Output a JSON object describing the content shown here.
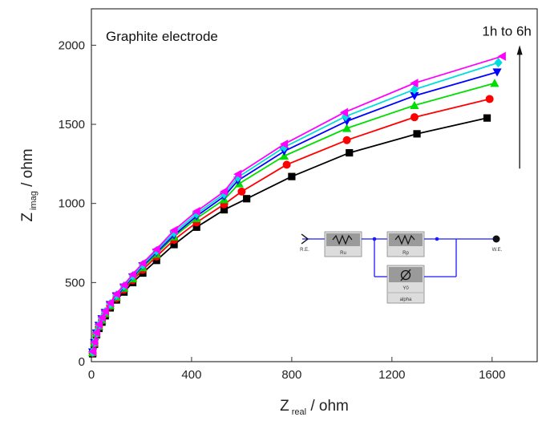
{
  "chart_data": {
    "type": "scatter",
    "title": "",
    "annotation": "Graphite electrode",
    "arrow_label": "1h to 6h",
    "xlabel": {
      "main": "Z",
      "sub": "real",
      "unit": " / ohm"
    },
    "ylabel": {
      "main": "Z",
      "sub": "imag",
      "unit": " / ohm"
    },
    "xlim": [
      0,
      1780
    ],
    "ylim": [
      0,
      2230
    ],
    "xticks": [
      0,
      400,
      800,
      1200,
      1600
    ],
    "yticks": [
      0,
      500,
      1000,
      1500,
      2000
    ],
    "x_tick_labels": [
      "0",
      "400",
      "800",
      "1200",
      "1600"
    ],
    "y_tick_labels": [
      "0",
      "500",
      "1000",
      "1500",
      "2000"
    ],
    "grid": false,
    "arrow": {
      "x": 1710,
      "y_from": 1220,
      "y_to": 1990
    },
    "series": [
      {
        "color": "#000000",
        "marker": "square",
        "hours": 1,
        "x": [
          5,
          12,
          20,
          30,
          42,
          55,
          75,
          100,
          130,
          165,
          205,
          260,
          330,
          420,
          530,
          620,
          800,
          1030,
          1300,
          1580
        ],
        "y": [
          50,
          110,
          170,
          210,
          250,
          290,
          340,
          390,
          440,
          500,
          560,
          640,
          740,
          850,
          960,
          1030,
          1170,
          1320,
          1440,
          1540
        ]
      },
      {
        "color": "#ff0000",
        "marker": "circle",
        "hours": 2,
        "x": [
          5,
          12,
          20,
          30,
          42,
          55,
          75,
          100,
          130,
          165,
          205,
          260,
          330,
          420,
          530,
          600,
          780,
          1020,
          1290,
          1590
        ],
        "y": [
          55,
          115,
          175,
          220,
          260,
          300,
          350,
          400,
          455,
          515,
          580,
          665,
          770,
          880,
          995,
          1075,
          1245,
          1400,
          1545,
          1660
        ]
      },
      {
        "color": "#00dd00",
        "marker": "triangle-up",
        "hours": 3,
        "x": [
          5,
          12,
          20,
          30,
          42,
          55,
          75,
          100,
          130,
          165,
          205,
          260,
          330,
          420,
          530,
          590,
          770,
          1020,
          1290,
          1610
        ],
        "y": [
          58,
          118,
          178,
          225,
          265,
          305,
          355,
          410,
          465,
          525,
          595,
          680,
          790,
          905,
          1025,
          1125,
          1300,
          1475,
          1620,
          1760
        ]
      },
      {
        "color": "#0000ff",
        "marker": "triangle-down",
        "hours": 4,
        "x": [
          5,
          12,
          20,
          30,
          42,
          55,
          75,
          100,
          130,
          165,
          205,
          260,
          330,
          420,
          530,
          585,
          770,
          1020,
          1290,
          1620
        ],
        "y": [
          60,
          120,
          180,
          228,
          270,
          310,
          360,
          415,
          470,
          535,
          605,
          690,
          800,
          920,
          1045,
          1145,
          1330,
          1520,
          1680,
          1830
        ]
      },
      {
        "color": "#00dddd",
        "marker": "diamond",
        "hours": 5,
        "x": [
          5,
          12,
          20,
          30,
          42,
          55,
          75,
          100,
          130,
          165,
          205,
          260,
          330,
          420,
          530,
          585,
          770,
          1015,
          1290,
          1625
        ],
        "y": [
          62,
          122,
          182,
          232,
          275,
          315,
          365,
          420,
          478,
          542,
          612,
          700,
          815,
          935,
          1060,
          1165,
          1355,
          1550,
          1720,
          1890
        ]
      },
      {
        "color": "#ff00ff",
        "marker": "triangle-left",
        "hours": 6,
        "x": [
          5,
          12,
          20,
          30,
          42,
          55,
          75,
          100,
          130,
          165,
          205,
          260,
          330,
          420,
          530,
          585,
          770,
          1010,
          1290,
          1640
        ],
        "y": [
          64,
          124,
          184,
          236,
          280,
          320,
          372,
          428,
          485,
          552,
          622,
          710,
          830,
          950,
          1075,
          1185,
          1375,
          1575,
          1760,
          1930
        ]
      }
    ],
    "circuit": {
      "start_label": "R.E.",
      "end_label": "W.E.",
      "elements": [
        {
          "name": "Ru"
        },
        {
          "name": "Rp"
        },
        {
          "name": "Y0",
          "extra": "alpha"
        }
      ]
    }
  }
}
